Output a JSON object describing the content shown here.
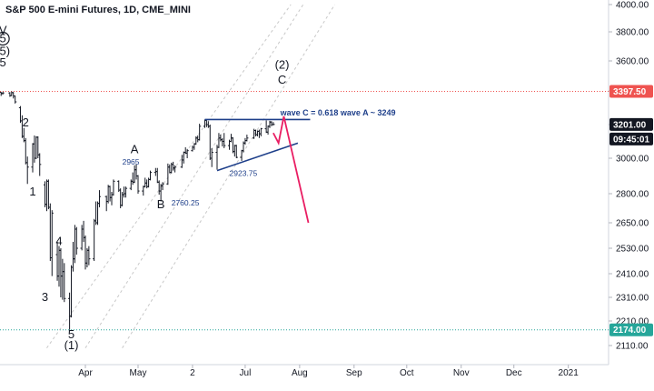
{
  "header": {
    "title": "S&P 500 E-mini Futures, 1D, CME_MINI"
  },
  "chart_data": {
    "type": "candlestick",
    "title": "S&P 500 E-mini Futures, 1D, CME_MINI",
    "y_axis_ticks": [
      "4000.00",
      "3800.00",
      "3600.00",
      "3400.00",
      "3200.00",
      "3000.00",
      "2800.00",
      "2650.00",
      "2530.00",
      "2410.00",
      "2310.00",
      "2210.00",
      "2110.00"
    ],
    "x_axis_ticks": [
      "Apr",
      "May",
      "2",
      "Jul",
      "Aug",
      "Sep",
      "Oct",
      "Nov",
      "Dec",
      "2021"
    ],
    "price_tags": [
      {
        "id": "resistance",
        "label": "3397.50",
        "value": 3397.5,
        "bg": "#ef5350",
        "fg": "#ffffff"
      },
      {
        "id": "last",
        "label": "3201.00",
        "value": 3201.0,
        "bg": "#131722",
        "fg": "#ffffff"
      },
      {
        "id": "countdown",
        "label": "09:45:01",
        "value": 3150.0,
        "bg": "#131722",
        "fg": "#ffffff"
      },
      {
        "id": "support",
        "label": "2174.00",
        "value": 2174.0,
        "bg": "#26a69a",
        "fg": "#ffffff"
      }
    ],
    "horizontal_levels": [
      {
        "value": 3397.5,
        "color": "#ef5350",
        "style": "dotted"
      },
      {
        "value": 2174.0,
        "color": "#26a69a",
        "style": "dotted"
      }
    ],
    "wave_labels": [
      {
        "text": "V",
        "date": "2020-02-14",
        "price": 3785
      },
      {
        "text": "5",
        "date": "2020-02-14",
        "price": 3728,
        "circled": true
      },
      {
        "text": "(5)",
        "date": "2020-02-14",
        "price": 3640
      },
      {
        "text": "5",
        "date": "2020-02-14",
        "price": 3565
      },
      {
        "text": "2",
        "date": "2020-02-27",
        "price": 3190
      },
      {
        "text": "1",
        "date": "2020-03-02",
        "price": 2790
      },
      {
        "text": "3",
        "date": "2020-03-09",
        "price": 2295
      },
      {
        "text": "4",
        "date": "2020-03-17",
        "price": 2545
      },
      {
        "text": "5",
        "date": "2020-03-24",
        "price": 2140
      },
      {
        "text": "(1)",
        "date": "2020-03-24",
        "price": 2095
      },
      {
        "text": "A",
        "date": "2020-04-29",
        "price": 3030
      },
      {
        "text": "B",
        "date": "2020-05-14",
        "price": 2725
      },
      {
        "text": "(2)",
        "date": "2020-07-22",
        "price": 3548
      },
      {
        "text": "C",
        "date": "2020-07-22",
        "price": 3448
      }
    ],
    "annotations": [
      {
        "text": "2965",
        "date": "2020-04-22",
        "price": 2965
      },
      {
        "text": "2760.25",
        "date": "2020-05-20",
        "price": 2740
      },
      {
        "text": "2923.75",
        "date": "2020-06-22",
        "price": 2900
      },
      {
        "text": "wave C = 0.618 wave A ~ 3249",
        "date": "2020-07-21",
        "price": 3253
      }
    ],
    "series": [
      {
        "type": "ohlc",
        "values": [
          [
            "2020-02-10",
            3360,
            3385,
            3355,
            3380
          ],
          [
            "2020-02-11",
            3380,
            3392,
            3370,
            3378
          ],
          [
            "2020-02-12",
            3378,
            3396,
            3375,
            3392
          ],
          [
            "2020-02-13",
            3392,
            3395,
            3370,
            3385
          ],
          [
            "2020-02-14",
            3385,
            3395,
            3378,
            3388
          ],
          [
            "2020-02-18",
            3388,
            3393,
            3365,
            3372
          ],
          [
            "2020-02-19",
            3372,
            3397,
            3370,
            3390
          ],
          [
            "2020-02-20",
            3390,
            3393,
            3355,
            3370
          ],
          [
            "2020-02-21",
            3370,
            3372,
            3325,
            3335
          ],
          [
            "2020-02-24",
            3300,
            3310,
            3210,
            3222
          ],
          [
            "2020-02-25",
            3222,
            3255,
            3120,
            3130
          ],
          [
            "2020-02-26",
            3130,
            3180,
            3095,
            3105
          ],
          [
            "2020-02-27",
            3105,
            3120,
            2965,
            2975
          ],
          [
            "2020-02-28",
            2975,
            3010,
            2855,
            2950
          ],
          [
            "2020-03-02",
            2950,
            3090,
            2920,
            3085
          ],
          [
            "2020-03-03",
            3085,
            3135,
            2975,
            3000
          ],
          [
            "2020-03-04",
            3000,
            3130,
            2995,
            3125
          ],
          [
            "2020-03-05",
            3125,
            3130,
            3000,
            3020
          ],
          [
            "2020-03-06",
            3020,
            3030,
            2900,
            2965
          ],
          [
            "2020-03-09",
            2850,
            2870,
            2730,
            2745
          ],
          [
            "2020-03-10",
            2745,
            2880,
            2710,
            2870
          ],
          [
            "2020-03-11",
            2870,
            2880,
            2720,
            2730
          ],
          [
            "2020-03-12",
            2730,
            2750,
            2470,
            2485
          ],
          [
            "2020-03-13",
            2485,
            2715,
            2400,
            2700
          ],
          [
            "2020-03-16",
            2500,
            2560,
            2380,
            2400
          ],
          [
            "2020-03-17",
            2400,
            2540,
            2355,
            2520
          ],
          [
            "2020-03-18",
            2520,
            2530,
            2310,
            2400
          ],
          [
            "2020-03-19",
            2400,
            2480,
            2300,
            2420
          ],
          [
            "2020-03-20",
            2420,
            2460,
            2290,
            2305
          ],
          [
            "2020-03-23",
            2305,
            2330,
            2174,
            2230
          ],
          [
            "2020-03-24",
            2230,
            2450,
            2225,
            2440
          ],
          [
            "2020-03-25",
            2440,
            2560,
            2420,
            2480
          ],
          [
            "2020-03-26",
            2480,
            2640,
            2460,
            2620
          ],
          [
            "2020-03-27",
            2620,
            2630,
            2500,
            2530
          ],
          [
            "2020-03-30",
            2530,
            2640,
            2520,
            2620
          ],
          [
            "2020-03-31",
            2620,
            2660,
            2560,
            2580
          ],
          [
            "2020-04-01",
            2580,
            2590,
            2430,
            2460
          ],
          [
            "2020-04-02",
            2460,
            2530,
            2440,
            2520
          ],
          [
            "2020-04-03",
            2520,
            2540,
            2450,
            2480
          ],
          [
            "2020-04-06",
            2480,
            2670,
            2470,
            2660
          ],
          [
            "2020-04-07",
            2660,
            2760,
            2640,
            2650
          ],
          [
            "2020-04-08",
            2650,
            2760,
            2640,
            2750
          ],
          [
            "2020-04-09",
            2750,
            2820,
            2730,
            2785
          ],
          [
            "2020-04-13",
            2785,
            2790,
            2710,
            2760
          ],
          [
            "2020-04-14",
            2760,
            2850,
            2750,
            2840
          ],
          [
            "2020-04-15",
            2840,
            2845,
            2760,
            2780
          ],
          [
            "2020-04-16",
            2780,
            2810,
            2740,
            2795
          ],
          [
            "2020-04-17",
            2795,
            2880,
            2790,
            2870
          ],
          [
            "2020-04-20",
            2870,
            2875,
            2810,
            2820
          ],
          [
            "2020-04-21",
            2820,
            2830,
            2725,
            2740
          ],
          [
            "2020-04-22",
            2740,
            2810,
            2735,
            2795
          ],
          [
            "2020-04-23",
            2795,
            2840,
            2780,
            2800
          ],
          [
            "2020-04-24",
            2800,
            2840,
            2780,
            2830
          ],
          [
            "2020-04-27",
            2830,
            2880,
            2820,
            2870
          ],
          [
            "2020-04-28",
            2870,
            2920,
            2850,
            2865
          ],
          [
            "2020-04-29",
            2865,
            2960,
            2860,
            2935
          ],
          [
            "2020-04-30",
            2935,
            2965,
            2880,
            2900
          ],
          [
            "2020-05-01",
            2900,
            2905,
            2800,
            2815
          ],
          [
            "2020-05-04",
            2815,
            2845,
            2790,
            2840
          ],
          [
            "2020-05-05",
            2840,
            2890,
            2835,
            2860
          ],
          [
            "2020-05-06",
            2860,
            2880,
            2830,
            2840
          ],
          [
            "2020-05-07",
            2840,
            2890,
            2835,
            2880
          ],
          [
            "2020-05-08",
            2880,
            2930,
            2875,
            2920
          ],
          [
            "2020-05-11",
            2920,
            2945,
            2900,
            2925
          ],
          [
            "2020-05-12",
            2925,
            2945,
            2860,
            2865
          ],
          [
            "2020-05-13",
            2865,
            2875,
            2795,
            2815
          ],
          [
            "2020-05-14",
            2815,
            2855,
            2760,
            2845
          ],
          [
            "2020-05-15",
            2845,
            2865,
            2820,
            2855
          ],
          [
            "2020-05-18",
            2855,
            2970,
            2850,
            2950
          ],
          [
            "2020-05-19",
            2950,
            2965,
            2915,
            2920
          ],
          [
            "2020-05-20",
            2920,
            2975,
            2915,
            2965
          ],
          [
            "2020-05-21",
            2965,
            2980,
            2930,
            2945
          ],
          [
            "2020-05-22",
            2945,
            2960,
            2920,
            2950
          ],
          [
            "2020-05-26",
            2950,
            3020,
            2945,
            2990
          ],
          [
            "2020-05-27",
            2990,
            3040,
            2970,
            3035
          ],
          [
            "2020-05-28",
            3035,
            3065,
            3025,
            3030
          ],
          [
            "2020-05-29",
            3030,
            3055,
            3000,
            3045
          ],
          [
            "2020-06-01",
            3045,
            3075,
            3040,
            3065
          ],
          [
            "2020-06-02",
            3065,
            3090,
            3050,
            3085
          ],
          [
            "2020-06-03",
            3085,
            3130,
            3080,
            3120
          ],
          [
            "2020-06-04",
            3120,
            3135,
            3095,
            3110
          ],
          [
            "2020-06-05",
            3110,
            3205,
            3105,
            3190
          ],
          [
            "2020-06-08",
            3190,
            3230,
            3180,
            3225
          ],
          [
            "2020-06-09",
            3225,
            3230,
            3185,
            3200
          ],
          [
            "2020-06-10",
            3200,
            3220,
            3180,
            3190
          ],
          [
            "2020-06-11",
            3190,
            3200,
            2990,
            3000
          ],
          [
            "2020-06-12",
            3000,
            3060,
            2950,
            3035
          ],
          [
            "2020-06-15",
            3035,
            3080,
            2935,
            3065
          ],
          [
            "2020-06-16",
            3065,
            3150,
            3060,
            3120
          ],
          [
            "2020-06-17",
            3120,
            3140,
            3100,
            3110
          ],
          [
            "2020-06-18",
            3110,
            3120,
            3070,
            3100
          ],
          [
            "2020-06-19",
            3100,
            3150,
            3060,
            3075
          ],
          [
            "2020-06-22",
            3075,
            3110,
            3050,
            3100
          ],
          [
            "2020-06-23",
            3100,
            3145,
            3095,
            3120
          ],
          [
            "2020-06-24",
            3120,
            3125,
            3030,
            3040
          ],
          [
            "2020-06-25",
            3040,
            3080,
            3010,
            3075
          ],
          [
            "2020-06-26",
            3075,
            3080,
            3000,
            3005
          ],
          [
            "2020-06-29",
            3005,
            3050,
            2985,
            3045
          ],
          [
            "2020-06-30",
            3045,
            3100,
            3035,
            3090
          ],
          [
            "2020-07-01",
            3090,
            3120,
            3080,
            3105
          ],
          [
            "2020-07-02",
            3105,
            3140,
            3100,
            3120
          ],
          [
            "2020-07-06",
            3120,
            3175,
            3115,
            3165
          ],
          [
            "2020-07-07",
            3165,
            3170,
            3130,
            3140
          ],
          [
            "2020-07-08",
            3140,
            3165,
            3130,
            3160
          ],
          [
            "2020-07-09",
            3160,
            3170,
            3120,
            3145
          ],
          [
            "2020-07-10",
            3145,
            3180,
            3130,
            3175
          ],
          [
            "2020-07-13",
            3175,
            3225,
            3150,
            3155
          ],
          [
            "2020-07-14",
            3155,
            3195,
            3140,
            3190
          ],
          [
            "2020-07-15",
            3190,
            3222,
            3180,
            3215
          ],
          [
            "2020-07-16",
            3215,
            3220,
            3190,
            3200
          ],
          [
            "2020-07-17",
            3200,
            3215,
            3195,
            3201
          ]
        ]
      },
      {
        "type": "triangle",
        "color": "#1e3f8a",
        "lines": [
          [
            [
              "2020-06-08",
              3230
            ],
            [
              "2020-08-07",
              3230
            ]
          ],
          [
            [
              "2020-06-15",
              2930
            ],
            [
              "2020-07-31",
              3090
            ]
          ]
        ]
      },
      {
        "type": "projection",
        "color": "#e91e63",
        "points": [
          [
            "2020-07-17",
            3150
          ],
          [
            "2020-07-20",
            3090
          ],
          [
            "2020-07-23",
            3249
          ],
          [
            "2020-08-06",
            2650
          ]
        ]
      },
      {
        "type": "channel",
        "color": "#c8c8c8",
        "lines": [
          [
            [
              "2020-04-01",
              2100
            ],
            [
              "2020-08-03",
              4000
            ]
          ],
          [
            [
              "2020-04-22",
              2100
            ],
            [
              "2020-08-21",
              4000
            ]
          ],
          [
            [
              "2020-03-10",
              2100
            ],
            [
              "2020-07-27",
              4000
            ]
          ]
        ]
      }
    ]
  }
}
